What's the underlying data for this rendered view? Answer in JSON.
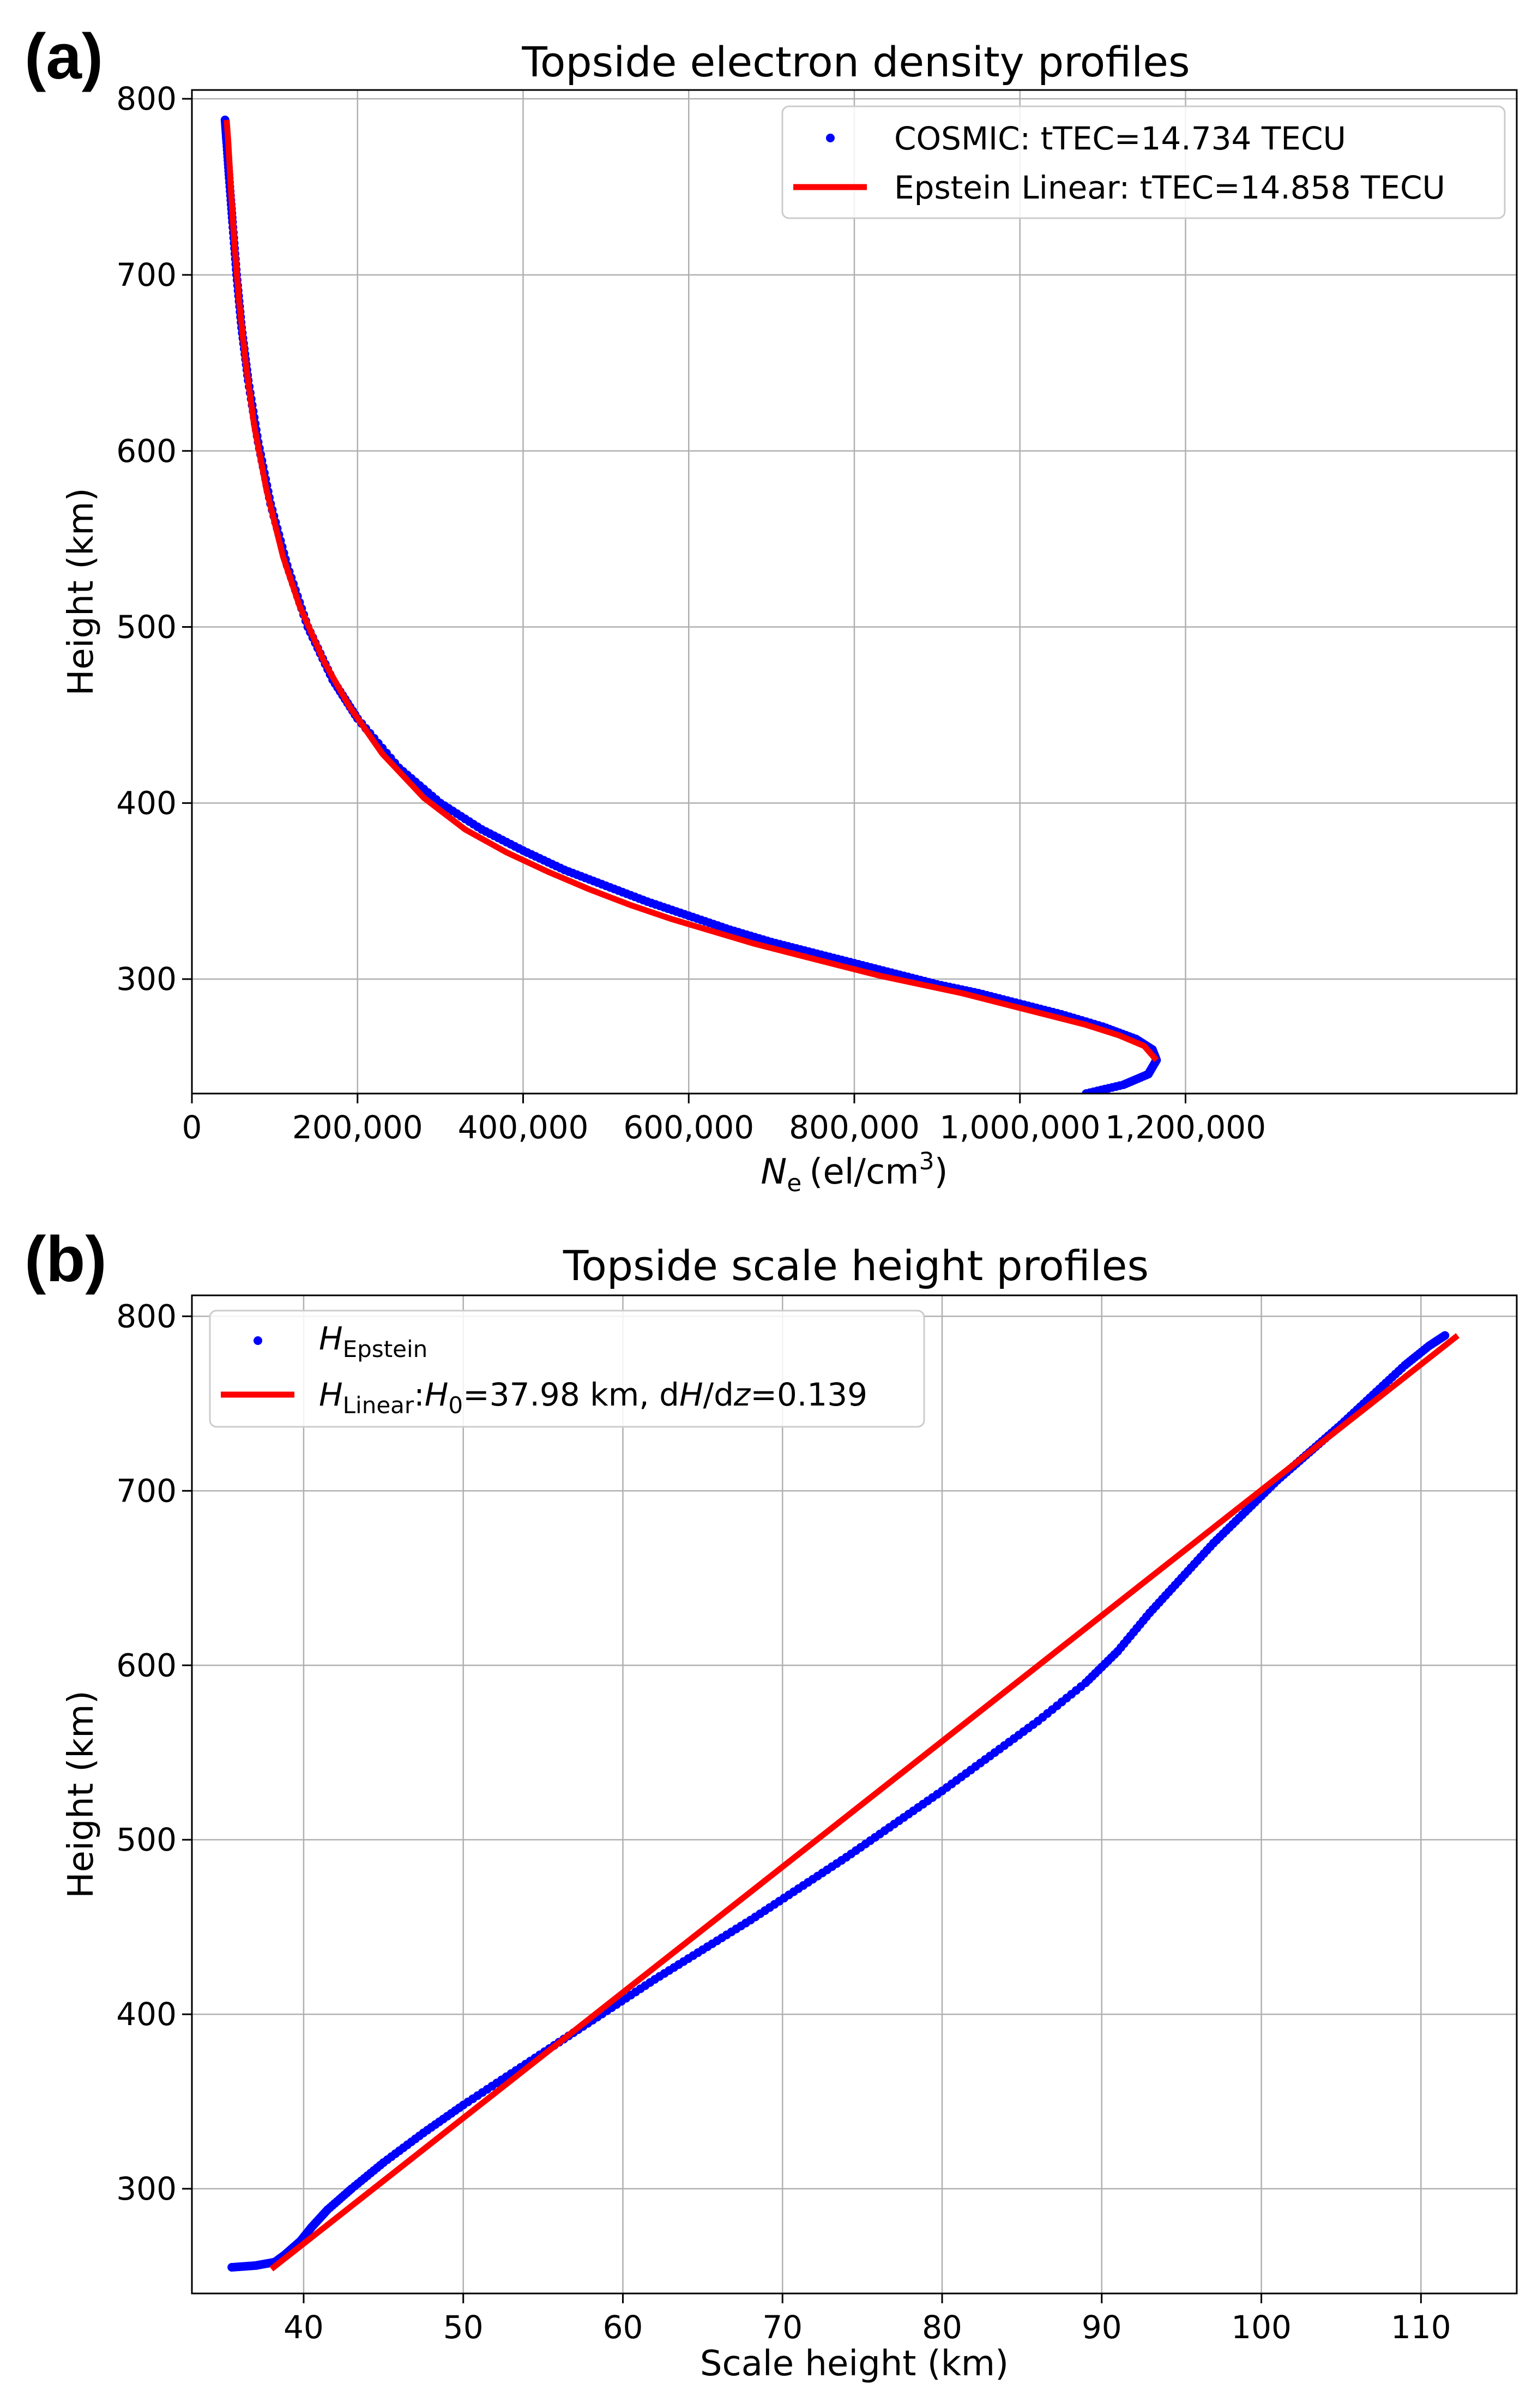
{
  "figure_labels": {
    "a": "(a)",
    "b": "(b)"
  },
  "colors": {
    "cosmic": "#0000ff",
    "model": "#ff0000",
    "grid": "#b0b0b0"
  },
  "chart_data": [
    {
      "id": "a",
      "type": "scatter",
      "title": "Topside electron density profiles",
      "xlabel_main": "N",
      "xlabel_sub": "e",
      "xlabel_unit": "(el/cm",
      "xlabel_sup": "3",
      "xlabel_close": ")",
      "ylabel": "Height (km)",
      "xlim": [
        0,
        1600000
      ],
      "ylim": [
        235,
        805
      ],
      "x_ticks": [
        0,
        200000,
        400000,
        600000,
        800000,
        1000000,
        1200000
      ],
      "x_tick_labels": [
        "0",
        "200,000",
        "400,000",
        "600,000",
        "800,000",
        "1,000,000",
        "1,200,000"
      ],
      "y_ticks": [
        300,
        400,
        500,
        600,
        700,
        800
      ],
      "y_tick_labels": [
        "300",
        "400",
        "500",
        "600",
        "700",
        "800"
      ],
      "grid": true,
      "legend_position": "top-right",
      "legend": [
        "COSMIC: tTEC=14.734 TECU",
        "Epstein Linear: tTEC=14.858 TECU"
      ],
      "series": [
        {
          "name": "COSMIC: tTEC=14.734 TECU",
          "kind": "markers",
          "x": [
            1080000,
            1125000,
            1155000,
            1165000,
            1160000,
            1140000,
            1100000,
            1050000,
            1000000,
            950000,
            900000,
            850000,
            800000,
            750000,
            700000,
            650000,
            600000,
            550000,
            500000,
            450000,
            400000,
            350000,
            300000,
            250000,
            200000,
            170000,
            140000,
            115000,
            95000,
            80000,
            68000,
            60000,
            54000,
            49000,
            45000,
            42000,
            40000
          ],
          "y": [
            235,
            240,
            246,
            254,
            260,
            266,
            273,
            280,
            286,
            292,
            297,
            303,
            309,
            315,
            321,
            328,
            336,
            344,
            353,
            362,
            373,
            385,
            400,
            420,
            448,
            470,
            500,
            535,
            570,
            605,
            640,
            670,
            700,
            730,
            755,
            775,
            788
          ]
        },
        {
          "name": "Epstein Linear: tTEC=14.858 TECU",
          "kind": "line",
          "x": [
            1165000,
            1150000,
            1120000,
            1080000,
            1030000,
            980000,
            930000,
            880000,
            830000,
            780000,
            730000,
            680000,
            630000,
            580000,
            530000,
            480000,
            430000,
            380000,
            330000,
            280000,
            230000,
            190000,
            160000,
            130000,
            110000,
            90000,
            75000,
            65000,
            57000,
            51000,
            47000,
            44000,
            42000
          ],
          "y": [
            254,
            262,
            268,
            274,
            280,
            286,
            292,
            297,
            302,
            308,
            314,
            320,
            327,
            334,
            342,
            351,
            361,
            372,
            385,
            403,
            428,
            455,
            480,
            512,
            540,
            578,
            615,
            650,
            685,
            720,
            750,
            775,
            788
          ]
        }
      ]
    },
    {
      "id": "b",
      "type": "scatter",
      "title": "Topside scale height profiles",
      "xlabel": "Scale height (km)",
      "ylabel": "Height (km)",
      "xlim": [
        33,
        116
      ],
      "ylim": [
        240,
        812
      ],
      "x_ticks": [
        40,
        50,
        60,
        70,
        80,
        90,
        100,
        110
      ],
      "x_tick_labels": [
        "40",
        "50",
        "60",
        "70",
        "80",
        "90",
        "100",
        "110"
      ],
      "y_ticks": [
        300,
        400,
        500,
        600,
        700,
        800
      ],
      "y_tick_labels": [
        "300",
        "400",
        "500",
        "600",
        "700",
        "800"
      ],
      "grid": true,
      "legend_position": "top-left",
      "legend_epstein": {
        "main": "H",
        "sub": "Epstein"
      },
      "legend_linear": {
        "main": "H",
        "sub": "Linear",
        "sep": ":",
        "h0_main": "H",
        "h0_sub": "0",
        "h0_value": "=37.98 km, d",
        "dh_main": "H",
        "dh_rest": "/d",
        "dz_main": "z",
        "dz_value": "=0.139"
      },
      "series": [
        {
          "name": "H Epstein",
          "kind": "markers",
          "x": [
            35.5,
            37.0,
            38.2,
            38.8,
            39.3,
            39.8,
            40.5,
            41.5,
            43.0,
            45.0,
            47.5,
            50.0,
            53.0,
            56.0,
            59.0,
            62.0,
            65.0,
            68.0,
            71.0,
            74.0,
            77.0,
            80.0,
            83.0,
            86.0,
            89.0,
            91.0,
            93.0,
            95.0,
            97.0,
            99.0,
            101.0,
            103.0,
            105.0,
            107.0,
            109.0,
            110.5,
            111.5
          ],
          "y": [
            255,
            256,
            258,
            262,
            266,
            270,
            278,
            288,
            300,
            315,
            332,
            348,
            366,
            384,
            402,
            420,
            437,
            454,
            472,
            490,
            509,
            528,
            548,
            568,
            590,
            608,
            630,
            650,
            670,
            688,
            706,
            722,
            738,
            755,
            772,
            783,
            789
          ]
        },
        {
          "name": "H Linear: H0=37.98 km, dH/dz=0.139",
          "kind": "line",
          "x": [
            37.98,
            112.3
          ],
          "y": [
            254,
            789
          ]
        }
      ]
    }
  ]
}
